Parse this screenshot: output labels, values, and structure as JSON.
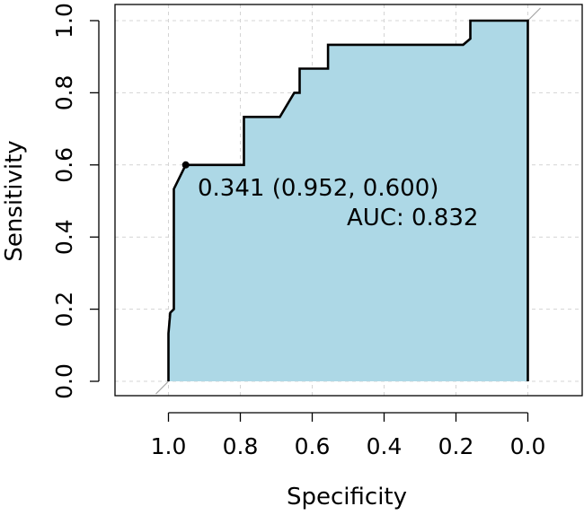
{
  "chart_data": {
    "type": "line",
    "title": "",
    "xlabel": "Specificity",
    "ylabel": "Sensitivity",
    "xlim": [
      1.15,
      -0.15
    ],
    "ylim": [
      0.0,
      1.0
    ],
    "x_reversed": true,
    "x_ticks": [
      1.0,
      0.8,
      0.6,
      0.4,
      0.2,
      0.0
    ],
    "x_tick_labels": [
      "1.0",
      "0.8",
      "0.6",
      "0.4",
      "0.2",
      "0.0"
    ],
    "y_ticks": [
      0.0,
      0.2,
      0.4,
      0.6,
      0.8,
      1.0
    ],
    "y_tick_labels": [
      "0.0",
      "0.2",
      "0.4",
      "0.6",
      "0.8",
      "1.0"
    ],
    "grid": true,
    "auc_fill_color": "#add8e6",
    "curve_color": "#000000",
    "diagonal_color": "#aaaaaa",
    "series": [
      {
        "specificity": [
          1.0,
          1.0,
          0.995,
          0.985,
          0.985,
          0.952,
          0.952,
          0.79,
          0.79,
          0.69,
          0.65,
          0.635,
          0.635,
          0.556,
          0.556,
          0.18,
          0.16,
          0.16,
          0.0,
          0.0
        ],
        "sensitivity": [
          0.0,
          0.133,
          0.19,
          0.2,
          0.533,
          0.6,
          0.6,
          0.6,
          0.733,
          0.733,
          0.8,
          0.8,
          0.867,
          0.867,
          0.933,
          0.933,
          0.95,
          1.0,
          1.0,
          0.0
        ]
      }
    ],
    "threshold_point": {
      "specificity": 0.952,
      "sensitivity": 0.6
    },
    "annotations": {
      "threshold_label": "0.341 (0.952, 0.600)",
      "auc_label": "AUC: 0.832"
    }
  }
}
